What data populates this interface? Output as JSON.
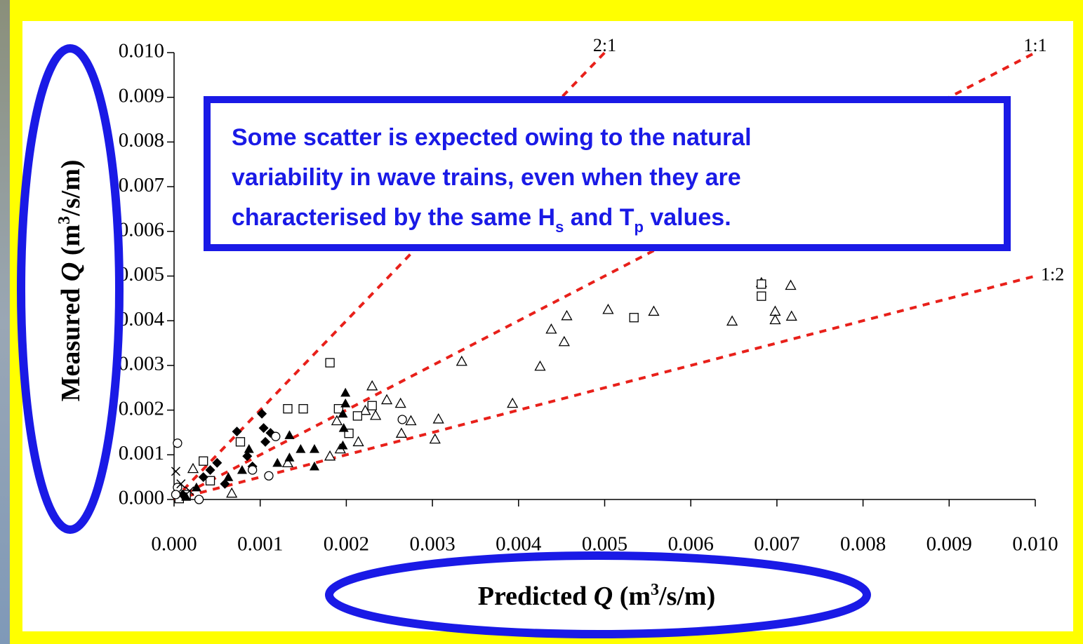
{
  "chart_data": {
    "type": "scatter",
    "x_label_parts": [
      "Predicted ",
      "Q",
      " (m",
      "3",
      "/s/m)"
    ],
    "y_label_parts": [
      "Measured ",
      "Q",
      " (m",
      "3",
      "/s/m)"
    ],
    "annotation": {
      "lines": [
        "Some scatter is expected owing to the natural",
        "variability in wave trains, even when they are"
      ],
      "last_line_parts": [
        "characterised by the same H",
        "s",
        " and T",
        "p",
        " values."
      ]
    },
    "xlim": [
      0,
      0.01
    ],
    "ylim": [
      0,
      0.01
    ],
    "xticks": [
      {
        "value": 0,
        "label": "0.000"
      },
      {
        "value": 0.001,
        "label": "0.001"
      },
      {
        "value": 0.002,
        "label": "0.002"
      },
      {
        "value": 0.003,
        "label": "0.003"
      },
      {
        "value": 0.004,
        "label": "0.004"
      },
      {
        "value": 0.005,
        "label": "0.005"
      },
      {
        "value": 0.006,
        "label": "0.006"
      },
      {
        "value": 0.007,
        "label": "0.007"
      },
      {
        "value": 0.008,
        "label": "0.008"
      },
      {
        "value": 0.009,
        "label": "0.009"
      },
      {
        "value": 0.01,
        "label": "0.010"
      }
    ],
    "yticks": [
      {
        "value": 0,
        "label": "0.000"
      },
      {
        "value": 0.001,
        "label": "0.001"
      },
      {
        "value": 0.002,
        "label": "0.002"
      },
      {
        "value": 0.003,
        "label": "0.003"
      },
      {
        "value": 0.004,
        "label": "0.004"
      },
      {
        "value": 0.005,
        "label": "0.005"
      },
      {
        "value": 0.006,
        "label": "0.006"
      },
      {
        "value": 0.007,
        "label": "0.007"
      },
      {
        "value": 0.008,
        "label": "0.008"
      },
      {
        "value": 0.009,
        "label": "0.009"
      },
      {
        "value": 0.01,
        "label": "0.010"
      }
    ],
    "reference_lines": [
      {
        "label": "2:1",
        "slope": 2,
        "color": "#e8201a"
      },
      {
        "label": "1:1",
        "slope": 1,
        "color": "#e8201a"
      },
      {
        "label": "1:2",
        "slope": 0.5,
        "color": "#e8201a"
      }
    ],
    "series": [
      {
        "marker": "triangle-open",
        "color": "#000000",
        "x": [
          0.00682,
          0.00716,
          0.00698,
          0.00717,
          0.00698,
          0.00648,
          0.00557,
          0.00504,
          0.00456,
          0.00438,
          0.00453,
          0.00425,
          0.00334,
          0.00393,
          0.00307,
          0.00303,
          0.00275,
          0.00263,
          0.00264,
          0.0023,
          0.00247,
          0.00234,
          0.00222,
          0.00214,
          0.00181,
          0.00189,
          0.00193,
          0.00067,
          0.00022,
          0.00132
        ],
        "values": [
          0.00485,
          0.00479,
          0.00421,
          0.0041,
          0.00402,
          0.00399,
          0.00421,
          0.00425,
          0.00411,
          0.00381,
          0.00353,
          0.00298,
          0.00309,
          0.00215,
          0.0018,
          0.00135,
          0.00176,
          0.00215,
          0.00148,
          0.00254,
          0.00223,
          0.00188,
          0.00199,
          0.00129,
          0.00097,
          0.00176,
          0.00113,
          0.00014,
          0.00069,
          0.00082
        ]
      },
      {
        "marker": "square-open",
        "color": "#000000",
        "x": [
          0.00682,
          0.00682,
          0.00534,
          0.00181,
          0.00132,
          0.0015,
          0.00191,
          0.0023,
          0.00213,
          0.00203,
          0.00077,
          0.00034,
          0.00042,
          6e-05,
          0.00014
        ],
        "values": [
          0.00482,
          0.00455,
          0.00407,
          0.00306,
          0.00203,
          0.00203,
          0.00203,
          0.0021,
          0.00187,
          0.00148,
          0.00129,
          0.00086,
          0.00042,
          2e-05,
          0.00011
        ]
      },
      {
        "marker": "diamond-filled",
        "color": "#000000",
        "x": [
          0.00102,
          0.00104,
          0.00112,
          0.00106,
          0.00073,
          0.00085,
          0.0005,
          0.00034,
          0.0001,
          0.00059,
          0.00091,
          0.00042
        ],
        "values": [
          0.00192,
          0.0016,
          0.00149,
          0.00129,
          0.00152,
          0.00097,
          0.00082,
          0.0005,
          0.00011,
          0.00035,
          0.00074,
          0.00066
        ]
      },
      {
        "marker": "triangle-filled",
        "color": "#000000",
        "x": [
          0.00199,
          0.00199,
          0.00196,
          0.00197,
          0.00196,
          0.00163,
          0.00163,
          0.00147,
          0.00134,
          0.00134,
          0.00087,
          0.00079,
          0.0012,
          0.00063,
          0.00026,
          0.00014
        ],
        "values": [
          0.00239,
          0.00215,
          0.00192,
          0.0016,
          0.00121,
          0.00113,
          0.00074,
          0.00113,
          0.00144,
          0.00094,
          0.00113,
          0.00066,
          0.00082,
          0.0005,
          0.00027,
          6e-05
        ]
      },
      {
        "marker": "circle-open",
        "color": "#000000",
        "x": [
          4e-05,
          0.00265,
          0.00118,
          0.0011,
          0.00091,
          0.00029,
          4e-05,
          2e-05
        ],
        "values": [
          0.00126,
          0.00179,
          0.00141,
          0.00053,
          0.00066,
          0,
          0.00027,
          0.00011
        ]
      },
      {
        "marker": "cross",
        "color": "#000000",
        "x": [
          2e-05,
          8e-05,
          0.00018
        ],
        "values": [
          0.00063,
          0.00035,
          0.00019
        ]
      }
    ]
  }
}
